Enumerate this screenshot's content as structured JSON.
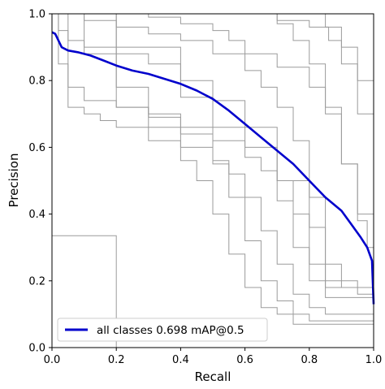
{
  "chart_data": {
    "type": "line",
    "title": "",
    "xlabel": "Recall",
    "ylabel": "Precision",
    "xlim": [
      0,
      1
    ],
    "ylim": [
      0,
      1
    ],
    "xticks": [
      "0.0",
      "0.2",
      "0.4",
      "0.6",
      "0.8",
      "1.0"
    ],
    "yticks": [
      "0.0",
      "0.2",
      "0.4",
      "0.6",
      "0.8",
      "1.0"
    ],
    "grid": false,
    "legend_position": "lower-left",
    "main_series": {
      "name": "all classes 0.698 mAP@0.5",
      "color": "#0000cc",
      "x": [
        0,
        0.01,
        0.03,
        0.05,
        0.08,
        0.12,
        0.16,
        0.2,
        0.25,
        0.3,
        0.35,
        0.4,
        0.45,
        0.5,
        0.55,
        0.6,
        0.65,
        0.7,
        0.75,
        0.8,
        0.85,
        0.9,
        0.93,
        0.96,
        0.98,
        0.995,
        1.0
      ],
      "y": [
        0.945,
        0.94,
        0.9,
        0.89,
        0.885,
        0.875,
        0.86,
        0.845,
        0.83,
        0.82,
        0.805,
        0.79,
        0.77,
        0.745,
        0.71,
        0.67,
        0.63,
        0.59,
        0.55,
        0.5,
        0.45,
        0.41,
        0.37,
        0.33,
        0.3,
        0.26,
        0.13
      ]
    },
    "class_series": [
      {
        "x": [
          0,
          0.01,
          0.02,
          0.05,
          0.1,
          0.2,
          0.3,
          0.4,
          0.5,
          0.6,
          0.7,
          0.8,
          0.85,
          0.9,
          0.95,
          1.0
        ],
        "y": [
          1.0,
          1.0,
          0.95,
          0.92,
          0.9,
          0.88,
          0.85,
          0.8,
          0.74,
          0.66,
          0.5,
          0.36,
          0.25,
          0.2,
          0.16,
          0.15
        ]
      },
      {
        "x": [
          0,
          0.05,
          0.1,
          0.2,
          0.3,
          0.4,
          0.5,
          0.6,
          0.65,
          0.7,
          0.75,
          0.8,
          0.85,
          0.9,
          1.0
        ],
        "y": [
          1.0,
          1.0,
          0.98,
          0.96,
          0.94,
          0.92,
          0.88,
          0.83,
          0.78,
          0.72,
          0.62,
          0.45,
          0.2,
          0.18,
          0.17
        ]
      },
      {
        "x": [
          0,
          0.1,
          0.2,
          0.3,
          0.4,
          0.5,
          0.55,
          0.6,
          0.7,
          0.8,
          0.85,
          0.9,
          0.95,
          0.98,
          1.0
        ],
        "y": [
          1.0,
          1.0,
          1.0,
          0.99,
          0.97,
          0.95,
          0.92,
          0.88,
          0.84,
          0.78,
          0.7,
          0.55,
          0.38,
          0.3,
          0.22
        ]
      },
      {
        "x": [
          0,
          0.2,
          0.4,
          0.6,
          0.7,
          0.75,
          0.8,
          0.85,
          0.9,
          0.95,
          1.0
        ],
        "y": [
          1.0,
          1.0,
          1.0,
          1.0,
          0.97,
          0.92,
          0.85,
          0.72,
          0.55,
          0.4,
          0.27
        ]
      },
      {
        "x": [
          0,
          0.4,
          0.6,
          0.8,
          0.85,
          0.9,
          0.95,
          1.0
        ],
        "y": [
          1.0,
          1.0,
          1.0,
          1.0,
          0.96,
          0.9,
          0.8,
          0.56
        ]
      },
      {
        "x": [
          0,
          0.5,
          0.7,
          0.8,
          0.86,
          0.9,
          0.95,
          1.0
        ],
        "y": [
          1.0,
          1.0,
          0.98,
          0.96,
          0.92,
          0.85,
          0.7,
          0.5
        ]
      },
      {
        "x": [
          0,
          0.02,
          0.05,
          0.1,
          0.15,
          0.2,
          0.3,
          0.4,
          0.45,
          0.5,
          0.55,
          0.6,
          0.65,
          0.7,
          0.75,
          1.0
        ],
        "y": [
          1.0,
          0.85,
          0.72,
          0.7,
          0.68,
          0.66,
          0.62,
          0.56,
          0.5,
          0.4,
          0.28,
          0.18,
          0.12,
          0.1,
          0.07,
          0.07
        ]
      },
      {
        "x": [
          0,
          0.05,
          0.1,
          0.2,
          0.3,
          0.4,
          0.5,
          0.55,
          0.6,
          0.65,
          0.7,
          0.75,
          0.8,
          1.0
        ],
        "y": [
          1.0,
          0.78,
          0.74,
          0.72,
          0.69,
          0.64,
          0.55,
          0.45,
          0.32,
          0.2,
          0.14,
          0.1,
          0.08,
          0.08
        ]
      },
      {
        "x": [
          0,
          0.1,
          0.2,
          0.3,
          0.4,
          0.5,
          0.55,
          0.6,
          0.65,
          0.7,
          0.75,
          0.8,
          0.85,
          1.0
        ],
        "y": [
          1.0,
          0.88,
          0.72,
          0.66,
          0.6,
          0.56,
          0.52,
          0.45,
          0.35,
          0.25,
          0.16,
          0.12,
          0.1,
          0.1
        ]
      },
      {
        "x": [
          0,
          0.2,
          0.3,
          0.4,
          0.5,
          0.6,
          0.65,
          0.7,
          0.75,
          0.8,
          0.85,
          1.0
        ],
        "y": [
          1.0,
          0.78,
          0.7,
          0.66,
          0.62,
          0.57,
          0.53,
          0.44,
          0.3,
          0.2,
          0.15,
          0.15
        ]
      },
      {
        "x": [
          0,
          0.2,
          0.4,
          0.5,
          0.6,
          0.7,
          0.75,
          0.8,
          0.85,
          1.0
        ],
        "y": [
          1.0,
          0.9,
          0.75,
          0.66,
          0.6,
          0.5,
          0.4,
          0.25,
          0.18,
          0.18
        ]
      },
      {
        "x": [
          0,
          0.2,
          0.2,
          1.0
        ],
        "y": [
          0.335,
          0.335,
          0.0,
          0.0
        ]
      }
    ]
  }
}
